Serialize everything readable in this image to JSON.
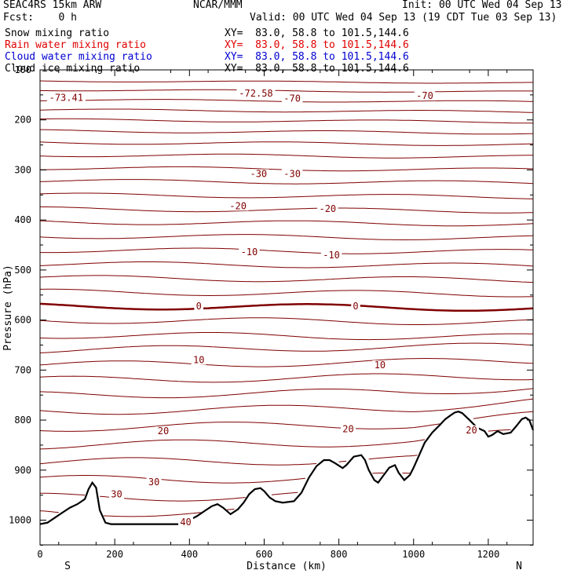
{
  "header": {
    "model": "SEAC4RS 15km ARW",
    "org": "NCAR/MMM",
    "init": "Init: 00 UTC Wed 04 Sep 13",
    "fcst": "Fcst:    0 h",
    "valid": "Valid: 00 UTC Wed 04 Sep 13 (19 CDT Tue 03 Sep 13)"
  },
  "legend": [
    {
      "name": "Snow mixing ratio",
      "xy": "XY=  83.0, 58.8 to 101.5,144.6",
      "color": "#000000"
    },
    {
      "name": "Rain water mixing ratio",
      "xy": "XY=  83.0, 58.8 to 101.5,144.6",
      "color": "#e00000"
    },
    {
      "name": "Cloud water mixing ratio",
      "xy": "XY=  83.0, 58.8 to 101.5,144.6",
      "color": "#0000d0"
    },
    {
      "name": "Cloud ice mixing ratio",
      "xy": "XY=  83.0, 58.8 to 101.5,144.6",
      "color": "#000000"
    }
  ],
  "chart_data": {
    "type": "line",
    "xlabel": "Distance (km)",
    "ylabel": "Pressure (hPa)",
    "xlim": [
      0,
      1320
    ],
    "ylim": [
      1050,
      100
    ],
    "x_ticks": [
      0,
      200,
      400,
      600,
      800,
      1000,
      1200
    ],
    "y_ticks": [
      200,
      300,
      400,
      500,
      600,
      700,
      800,
      900,
      1000
    ],
    "y_tick_labels": [
      "200",
      "300",
      "400",
      "500",
      "600",
      "700",
      "800",
      "900",
      "1000"
    ],
    "y_tick_label_top": "100",
    "x_end_labels": {
      "left": "S",
      "right": "N"
    },
    "contour_color": "#800000",
    "terrain_color": "#000000",
    "temperature_labels": [
      {
        "text": "-73.41",
        "x": 70,
        "p": 156
      },
      {
        "text": "-72.58",
        "x": 578,
        "p": 147
      },
      {
        "text": "-70",
        "x": 675,
        "p": 157
      },
      {
        "text": "-70",
        "x": 1030,
        "p": 152
      },
      {
        "text": "-30",
        "x": 585,
        "p": 308
      },
      {
        "text": "-30",
        "x": 675,
        "p": 308
      },
      {
        "text": "-20",
        "x": 530,
        "p": 372
      },
      {
        "text": "-20",
        "x": 770,
        "p": 378
      },
      {
        "text": "-10",
        "x": 560,
        "p": 464
      },
      {
        "text": "-10",
        "x": 780,
        "p": 470
      },
      {
        "text": "0",
        "x": 425,
        "p": 572
      },
      {
        "text": "0",
        "x": 845,
        "p": 572
      },
      {
        "text": "10",
        "x": 425,
        "p": 680
      },
      {
        "text": "10",
        "x": 910,
        "p": 690
      },
      {
        "text": "20",
        "x": 330,
        "p": 822
      },
      {
        "text": "20",
        "x": 825,
        "p": 818
      },
      {
        "text": "20",
        "x": 1155,
        "p": 820
      },
      {
        "text": "30",
        "x": 205,
        "p": 948
      },
      {
        "text": "30",
        "x": 305,
        "p": 924
      },
      {
        "text": "40",
        "x": 390,
        "p": 1004
      }
    ],
    "isotherm_levels_hPa": [
      122,
      140,
      160,
      180,
      200,
      222,
      245,
      270,
      296,
      322,
      350,
      378,
      404,
      432,
      460,
      488,
      516,
      544,
      572,
      600,
      630,
      660,
      690,
      720,
      750,
      782,
      815,
      850,
      885,
      920,
      955,
      985
    ],
    "terrain": {
      "x": [
        0,
        20,
        40,
        60,
        80,
        100,
        120,
        130,
        140,
        150,
        160,
        175,
        190,
        200,
        260,
        320,
        390,
        400,
        420,
        440,
        460,
        475,
        490,
        510,
        530,
        545,
        560,
        575,
        590,
        600,
        615,
        630,
        650,
        680,
        700,
        720,
        740,
        760,
        775,
        790,
        810,
        820,
        840,
        860,
        870,
        880,
        895,
        905,
        920,
        935,
        950,
        960,
        975,
        990,
        1000,
        1015,
        1030,
        1050,
        1070,
        1085,
        1100,
        1110,
        1120,
        1130,
        1150,
        1170,
        1190,
        1200,
        1210,
        1225,
        1240,
        1260,
        1275,
        1290,
        1300,
        1310,
        1320
      ],
      "p": [
        1008,
        1005,
        995,
        985,
        975,
        968,
        958,
        938,
        925,
        935,
        980,
        1005,
        1008,
        1008,
        1008,
        1008,
        1008,
        1000,
        992,
        982,
        972,
        968,
        975,
        988,
        978,
        965,
        948,
        938,
        936,
        942,
        955,
        962,
        965,
        962,
        945,
        915,
        892,
        880,
        880,
        886,
        896,
        890,
        873,
        870,
        880,
        900,
        920,
        925,
        910,
        895,
        890,
        905,
        920,
        910,
        895,
        870,
        845,
        825,
        810,
        798,
        790,
        785,
        783,
        786,
        800,
        815,
        822,
        833,
        830,
        822,
        828,
        825,
        812,
        798,
        795,
        800,
        820
      ]
    }
  }
}
